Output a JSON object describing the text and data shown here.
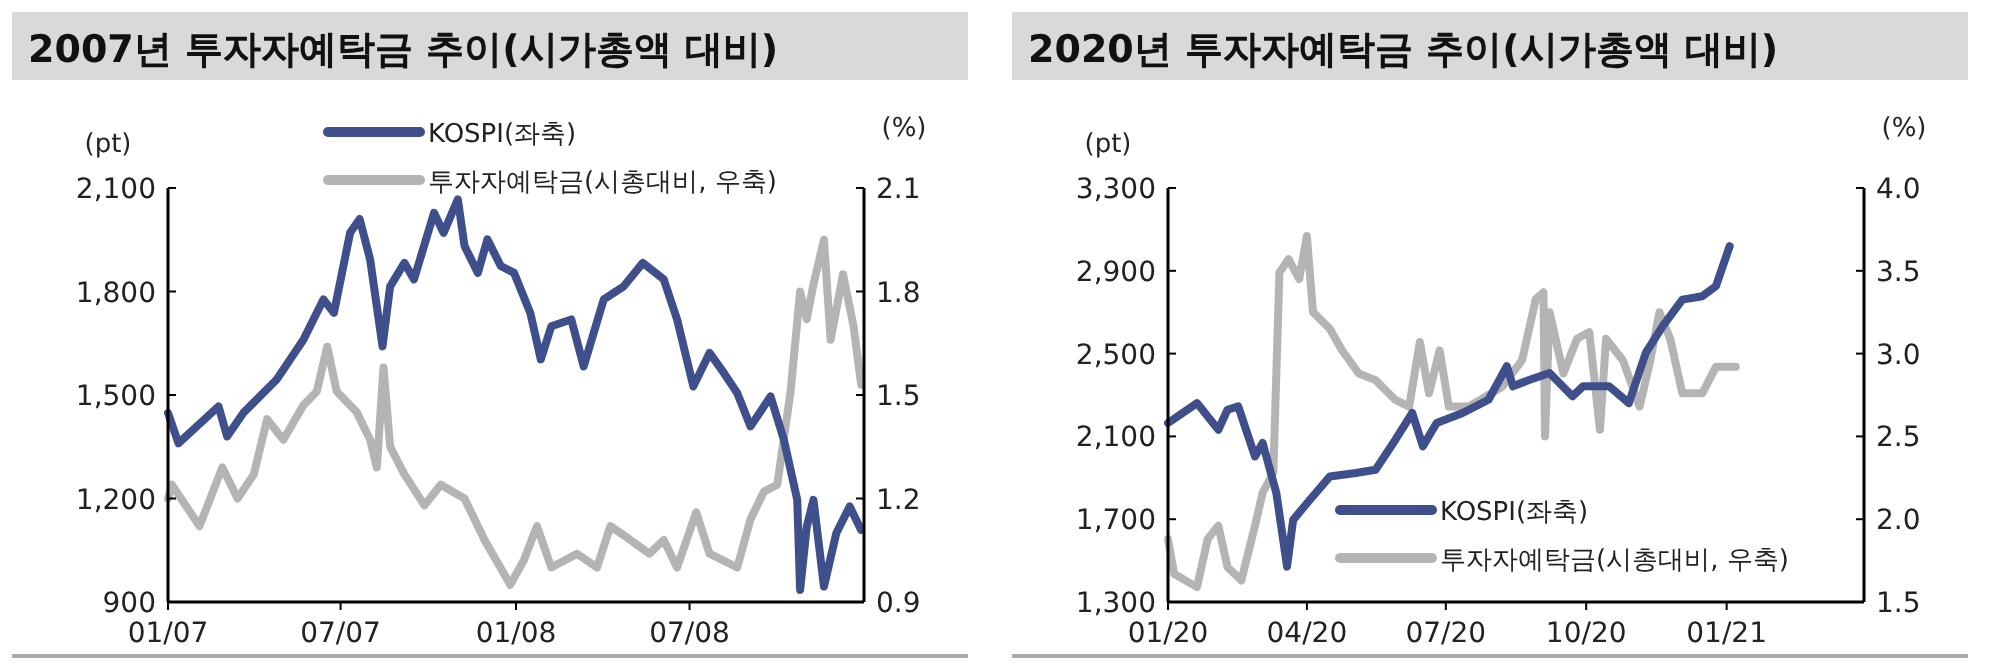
{
  "chart_data": [
    {
      "type": "line",
      "title": "2007년 투자자예탁금 추이(시가총액 대비)",
      "ylabel": "(pt)",
      "y2label": "(%)",
      "legend": "top",
      "grid": false,
      "xlim": [
        "2007-01-01",
        "2008-12-31"
      ],
      "xticks": [
        {
          "value": "2007-01-01",
          "label": "01/07"
        },
        {
          "value": "2007-07-01",
          "label": "07/07"
        },
        {
          "value": "2008-01-01",
          "label": "01/08"
        },
        {
          "value": "2008-07-01",
          "label": "07/08"
        }
      ],
      "ylim": [
        900,
        2100
      ],
      "yticks": [
        {
          "value": 900,
          "label": "900"
        },
        {
          "value": 1200,
          "label": "1,200"
        },
        {
          "value": 1500,
          "label": "1,500"
        },
        {
          "value": 1800,
          "label": "1,800"
        },
        {
          "value": 2100,
          "label": "2,100"
        }
      ],
      "y2lim": [
        0.9,
        2.1
      ],
      "y2ticks": [
        0.9,
        1.2,
        1.5,
        1.8,
        2.1
      ],
      "series": [
        {
          "name": "KOSPI(좌축)",
          "color": "#3f4f8c",
          "type": "line",
          "x": [
            "2007-01-01",
            "2007-01-12",
            "2007-02-23",
            "2007-03-04",
            "2007-03-21",
            "2007-04-25",
            "2007-05-23",
            "2007-06-13",
            "2007-06-24",
            "2007-07-11",
            "2007-07-21",
            "2007-08-01",
            "2007-08-14",
            "2007-08-22",
            "2007-09-06",
            "2007-09-16",
            "2007-10-07",
            "2007-10-17",
            "2007-11-01",
            "2007-11-08",
            "2007-11-22",
            "2007-12-02",
            "2007-12-16",
            "2007-12-30",
            "2008-01-16",
            "2008-01-27",
            "2008-02-07",
            "2008-02-28",
            "2008-03-12",
            "2008-04-02",
            "2008-04-23",
            "2008-05-13",
            "2008-06-04",
            "2008-06-18",
            "2008-07-05",
            "2008-07-22",
            "2008-08-06",
            "2008-08-20",
            "2008-09-03",
            "2008-09-24",
            "2008-10-08",
            "2008-10-22",
            "2008-10-25",
            "2008-11-01",
            "2008-11-08",
            "2008-11-19",
            "2008-12-02",
            "2008-12-16",
            "2008-12-28"
          ],
          "values": [
            1448,
            1360,
            1467,
            1380,
            1448,
            1545,
            1660,
            1777,
            1738,
            1970,
            2010,
            1893,
            1641,
            1815,
            1883,
            1835,
            2028,
            1970,
            2067,
            1932,
            1854,
            1951,
            1874,
            1854,
            1738,
            1603,
            1699,
            1719,
            1583,
            1777,
            1815,
            1883,
            1835,
            1719,
            1525,
            1622,
            1564,
            1506,
            1409,
            1496,
            1370,
            1196,
            935,
            1119,
            1196,
            945,
            1100,
            1177,
            1109
          ]
        },
        {
          "name": "투자자예탁금(시총대비, 우축)",
          "color": "#b4b4b4",
          "type": "line",
          "axis": "y2",
          "x": [
            "2007-01-01",
            "2007-01-05",
            "2007-02-03",
            "2007-02-27",
            "2007-03-15",
            "2007-04-01",
            "2007-04-15",
            "2007-05-02",
            "2007-05-23",
            "2007-06-06",
            "2007-06-17",
            "2007-06-27",
            "2007-07-18",
            "2007-08-01",
            "2007-08-08",
            "2007-08-15",
            "2007-08-22",
            "2007-09-06",
            "2007-09-27",
            "2007-10-14",
            "2007-11-08",
            "2007-11-29",
            "2007-12-26",
            "2008-01-09",
            "2008-01-23",
            "2008-02-07",
            "2008-03-05",
            "2008-03-26",
            "2008-04-09",
            "2008-04-30",
            "2008-05-20",
            "2008-06-04",
            "2008-06-18",
            "2008-07-08",
            "2008-07-22",
            "2008-08-20",
            "2008-09-03",
            "2008-09-17",
            "2008-10-01",
            "2008-10-15",
            "2008-10-25",
            "2008-11-01",
            "2008-11-08",
            "2008-11-19",
            "2008-11-26",
            "2008-12-09",
            "2008-12-20",
            "2008-12-28"
          ],
          "values": [
            1.2,
            1.24,
            1.12,
            1.29,
            1.2,
            1.27,
            1.43,
            1.37,
            1.47,
            1.51,
            1.64,
            1.51,
            1.45,
            1.37,
            1.29,
            1.58,
            1.35,
            1.27,
            1.18,
            1.24,
            1.2,
            1.08,
            0.95,
            1.02,
            1.12,
            1.0,
            1.04,
            1.0,
            1.12,
            1.08,
            1.04,
            1.08,
            1.0,
            1.16,
            1.04,
            1.0,
            1.14,
            1.22,
            1.24,
            1.51,
            1.8,
            1.72,
            1.82,
            1.95,
            1.66,
            1.85,
            1.7,
            1.53
          ]
        }
      ]
    },
    {
      "type": "line",
      "title": "2020년 투자자예탁금 추이(시가총액 대비)",
      "ylabel": "(pt)",
      "y2label": "(%)",
      "legend": "bottom right",
      "grid": false,
      "xlim": [
        "2020-01-01",
        "2021-04-01"
      ],
      "xticks": [
        {
          "value": "2020-01-01",
          "label": "01/20"
        },
        {
          "value": "2020-04-01",
          "label": "04/20"
        },
        {
          "value": "2020-07-01",
          "label": "07/20"
        },
        {
          "value": "2020-10-01",
          "label": "10/20"
        },
        {
          "value": "2021-01-01",
          "label": "01/21"
        }
      ],
      "ylim": [
        1300,
        3300
      ],
      "yticks": [
        {
          "value": 1300,
          "label": "1,300"
        },
        {
          "value": 1700,
          "label": "1,700"
        },
        {
          "value": 2100,
          "label": "2,100"
        },
        {
          "value": 2500,
          "label": "2,500"
        },
        {
          "value": 2900,
          "label": "2,900"
        },
        {
          "value": 3300,
          "label": "3,300"
        }
      ],
      "y2lim": [
        1.5,
        4.0
      ],
      "y2ticks": [
        1.5,
        {
          "value": 2,
          "label": "2.0"
        },
        2.5,
        {
          "value": 3,
          "label": "3.0"
        },
        3.5,
        {
          "value": 4,
          "label": "4.0"
        }
      ],
      "series": [
        {
          "name": "KOSPI(좌축)",
          "color": "#3f4f8c",
          "type": "line",
          "x": [
            "2020-01-01",
            "2020-01-20",
            "2020-02-03",
            "2020-02-09",
            "2020-02-16",
            "2020-02-27",
            "2020-03-03",
            "2020-03-12",
            "2020-03-19",
            "2020-03-23",
            "2020-04-03",
            "2020-04-16",
            "2020-05-03",
            "2020-05-16",
            "2020-05-29",
            "2020-06-09",
            "2020-06-16",
            "2020-06-25",
            "2020-07-12",
            "2020-07-29",
            "2020-08-10",
            "2020-08-14",
            "2020-08-25",
            "2020-09-07",
            "2020-09-22",
            "2020-09-29",
            "2020-10-16",
            "2020-10-29",
            "2020-11-09",
            "2020-11-20",
            "2020-12-03",
            "2020-12-16",
            "2020-12-25",
            "2021-01-03"
          ],
          "values": [
            2165,
            2261,
            2132,
            2229,
            2245,
            2003,
            2068,
            1826,
            1471,
            1697,
            1794,
            1906,
            1923,
            1939,
            2084,
            2213,
            2052,
            2165,
            2213,
            2277,
            2439,
            2342,
            2374,
            2406,
            2294,
            2342,
            2342,
            2261,
            2503,
            2632,
            2761,
            2777,
            2826,
            3019
          ]
        },
        {
          "name": "투자자예탁금(시총대비, 우축)",
          "color": "#b4b4b4",
          "type": "line",
          "axis": "y2",
          "x": [
            "2020-01-01",
            "2020-01-05",
            "2020-01-20",
            "2020-01-27",
            "2020-02-03",
            "2020-02-09",
            "2020-02-18",
            "2020-02-27",
            "2020-03-03",
            "2020-03-10",
            "2020-03-14",
            "2020-03-20",
            "2020-03-27",
            "2020-04-01",
            "2020-04-05",
            "2020-04-16",
            "2020-04-24",
            "2020-05-05",
            "2020-05-16",
            "2020-05-29",
            "2020-06-07",
            "2020-06-14",
            "2020-06-20",
            "2020-06-27",
            "2020-07-03",
            "2020-07-16",
            "2020-08-07",
            "2020-08-20",
            "2020-08-29",
            "2020-09-03",
            "2020-09-04",
            "2020-09-07",
            "2020-09-16",
            "2020-09-25",
            "2020-10-03",
            "2020-10-10",
            "2020-10-14",
            "2020-10-25",
            "2020-11-05",
            "2020-11-12",
            "2020-11-18",
            "2020-11-25",
            "2020-12-03",
            "2020-12-16",
            "2020-12-25",
            "2021-01-07"
          ],
          "values": [
            1.88,
            1.67,
            1.59,
            1.88,
            1.96,
            1.71,
            1.63,
            1.96,
            2.16,
            2.28,
            3.49,
            3.57,
            3.45,
            3.71,
            3.25,
            3.15,
            3.02,
            2.88,
            2.84,
            2.72,
            2.68,
            3.07,
            2.76,
            3.02,
            2.68,
            2.68,
            2.8,
            2.96,
            3.33,
            3.37,
            2.5,
            3.25,
            2.88,
            3.09,
            3.13,
            2.54,
            3.09,
            2.96,
            2.68,
            2.96,
            3.25,
            3.09,
            2.76,
            2.76,
            2.92,
            2.92
          ]
        }
      ]
    }
  ]
}
